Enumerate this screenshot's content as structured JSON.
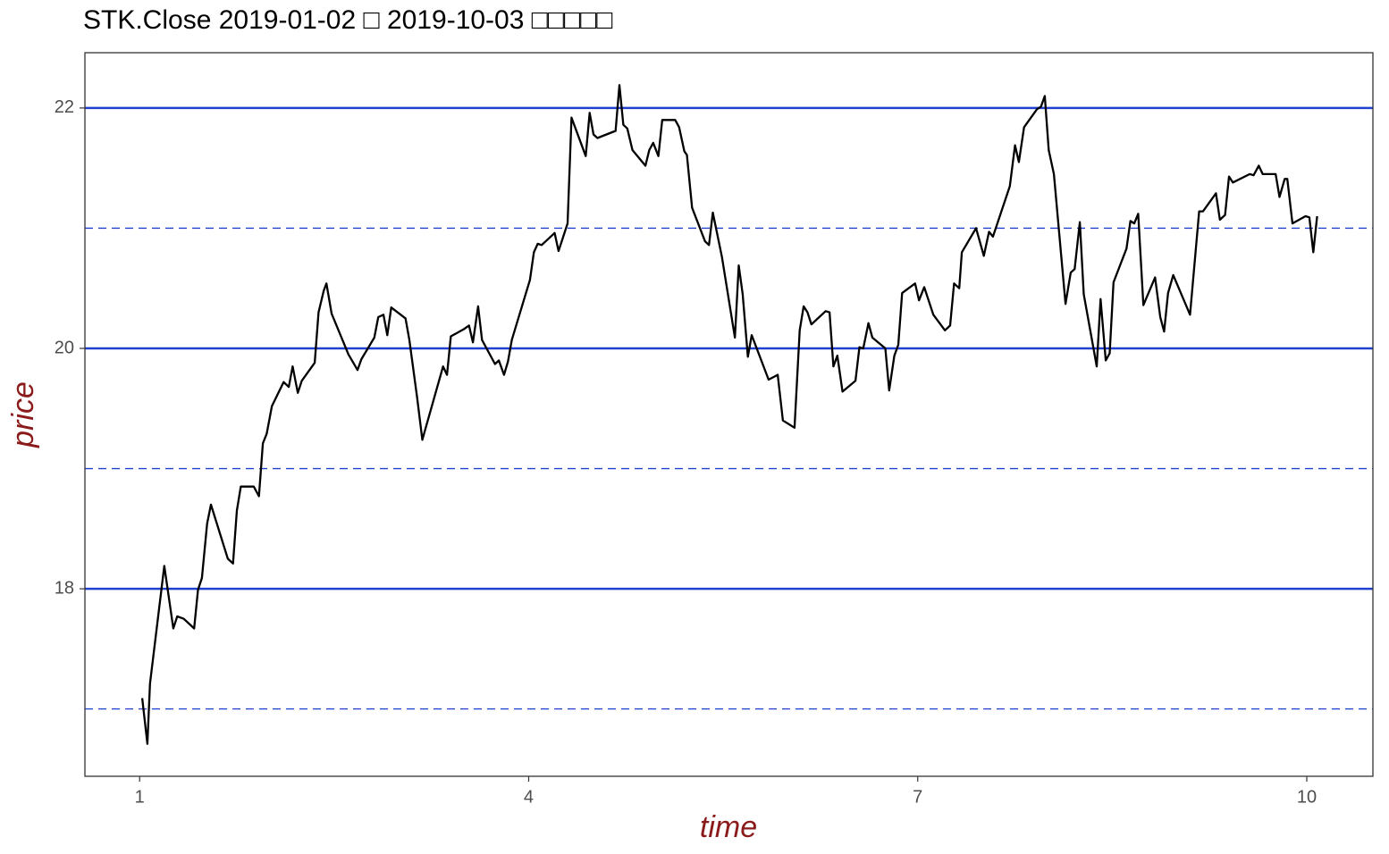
{
  "chart_data": {
    "type": "line",
    "title": "STK.Close 2019-01-02 □ 2019-10-03 □□□□□",
    "xlabel": "time",
    "ylabel": "price",
    "color": "#000000",
    "xlim": [
      0.578,
      10.51
    ],
    "ylim": [
      16.44,
      22.46
    ],
    "xticks": [
      1,
      4,
      7,
      10
    ],
    "yticks": [
      18,
      20,
      22
    ],
    "hlines": [
      {
        "y": 22,
        "style": "solid",
        "color": "#2040d0"
      },
      {
        "y": 20,
        "style": "solid",
        "color": "#2040d0"
      },
      {
        "y": 18,
        "style": "solid",
        "color": "#2040d0"
      },
      {
        "y": 21,
        "style": "dashed",
        "color": "#2040d0"
      },
      {
        "y": 19,
        "style": "dashed",
        "color": "#2040d0"
      },
      {
        "y": 17,
        "style": "dashed",
        "color": "#2040d0"
      }
    ],
    "x": [
      1.02,
      1.06,
      1.08,
      1.19,
      1.26,
      1.29,
      1.34,
      1.42,
      1.45,
      1.48,
      1.52,
      1.55,
      1.68,
      1.72,
      1.75,
      1.78,
      1.88,
      1.92,
      1.95,
      1.98,
      2.02,
      2.11,
      2.15,
      2.18,
      2.22,
      2.25,
      2.35,
      2.38,
      2.42,
      2.44,
      2.48,
      2.61,
      2.68,
      2.71,
      2.81,
      2.84,
      2.88,
      2.91,
      2.94,
      3.05,
      3.08,
      3.14,
      3.18,
      3.34,
      3.37,
      3.4,
      3.5,
      3.54,
      3.57,
      3.61,
      3.64,
      3.74,
      3.77,
      3.81,
      3.84,
      3.87,
      4.01,
      4.04,
      4.07,
      4.1,
      4.2,
      4.23,
      4.3,
      4.33,
      4.44,
      4.47,
      4.5,
      4.53,
      4.67,
      4.7,
      4.73,
      4.76,
      4.8,
      4.9,
      4.93,
      4.96,
      5.0,
      5.03,
      5.13,
      5.16,
      5.2,
      5.22,
      5.26,
      5.36,
      5.39,
      5.42,
      5.49,
      5.59,
      5.62,
      5.65,
      5.69,
      5.72,
      5.85,
      5.92,
      5.96,
      6.05,
      6.09,
      6.12,
      6.15,
      6.18,
      6.29,
      6.32,
      6.35,
      6.38,
      6.42,
      6.52,
      6.55,
      6.58,
      6.62,
      6.65,
      6.75,
      6.78,
      6.82,
      6.85,
      6.88,
      6.98,
      7.01,
      7.05,
      7.12,
      7.21,
      7.25,
      7.28,
      7.32,
      7.34,
      7.45,
      7.51,
      7.55,
      7.58,
      7.71,
      7.75,
      7.78,
      7.82,
      7.92,
      7.95,
      7.98,
      8.01,
      8.05,
      8.14,
      8.18,
      8.21,
      8.25,
      8.28,
      8.38,
      8.41,
      8.45,
      8.48,
      8.51,
      8.61,
      8.64,
      8.67,
      8.7,
      8.74,
      8.83,
      8.87,
      8.9,
      8.93,
      8.97,
      9.1,
      9.17,
      9.2,
      9.3,
      9.33,
      9.37,
      9.4,
      9.43,
      9.56,
      9.59,
      9.63,
      9.66,
      9.76,
      9.79,
      9.83,
      9.85,
      9.89,
      9.99,
      10.02,
      10.05,
      10.08
    ],
    "values": [
      17.09,
      16.71,
      17.21,
      18.19,
      17.67,
      17.77,
      17.75,
      17.67,
      17.99,
      18.09,
      18.54,
      18.7,
      18.25,
      18.21,
      18.65,
      18.85,
      18.85,
      18.77,
      19.21,
      19.29,
      19.52,
      19.72,
      19.68,
      19.85,
      19.63,
      19.73,
      19.88,
      20.3,
      20.48,
      20.54,
      20.29,
      19.95,
      19.82,
      19.91,
      20.09,
      20.26,
      20.28,
      20.11,
      20.34,
      20.25,
      20.07,
      19.59,
      19.24,
      19.85,
      19.78,
      20.1,
      20.16,
      20.19,
      20.05,
      20.35,
      20.07,
      19.87,
      19.9,
      19.78,
      19.89,
      20.07,
      20.57,
      20.8,
      20.87,
      20.86,
      20.96,
      20.81,
      21.04,
      21.92,
      21.6,
      21.96,
      21.78,
      21.75,
      21.81,
      22.19,
      21.86,
      21.83,
      21.65,
      21.52,
      21.65,
      21.71,
      21.6,
      21.9,
      21.9,
      21.84,
      21.64,
      21.61,
      21.17,
      20.89,
      20.86,
      21.13,
      20.76,
      20.09,
      20.69,
      20.45,
      19.93,
      20.11,
      19.74,
      19.78,
      19.4,
      19.34,
      20.15,
      20.35,
      20.3,
      20.2,
      20.31,
      20.3,
      19.85,
      19.94,
      19.64,
      19.73,
      20.01,
      20.0,
      20.21,
      20.09,
      20.0,
      19.65,
      19.94,
      20.03,
      20.46,
      20.54,
      20.4,
      20.51,
      20.28,
      20.15,
      20.19,
      20.54,
      20.5,
      20.8,
      21.0,
      20.77,
      20.97,
      20.93,
      21.35,
      21.69,
      21.55,
      21.84,
      21.99,
      22.01,
      22.1,
      21.65,
      21.45,
      20.37,
      20.63,
      20.66,
      21.05,
      20.45,
      19.85,
      20.41,
      19.9,
      19.96,
      20.55,
      20.83,
      21.06,
      21.04,
      21.12,
      20.36,
      20.59,
      20.26,
      20.14,
      20.46,
      20.61,
      20.28,
      21.14,
      21.14,
      21.29,
      21.07,
      21.11,
      21.43,
      21.38,
      21.45,
      21.44,
      21.52,
      21.45,
      21.45,
      21.26,
      21.41,
      21.41,
      21.04,
      21.1,
      21.09,
      20.8,
      21.1
    ]
  }
}
